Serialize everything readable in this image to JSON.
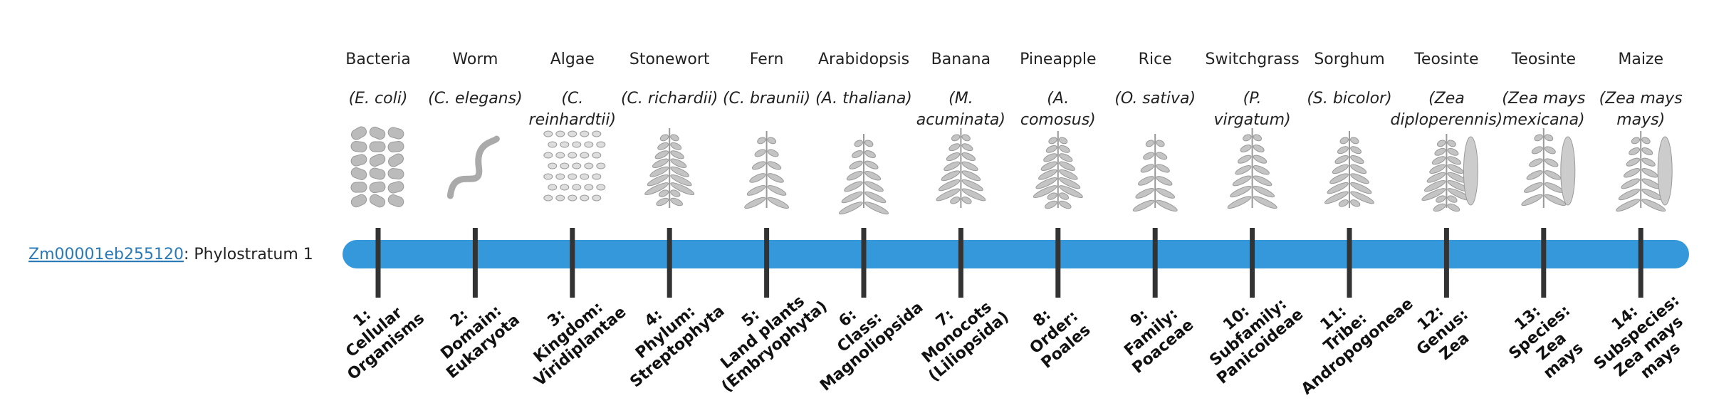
{
  "gene": {
    "id": "Zm00001eb255120",
    "suffix": ": Phylostratum 1"
  },
  "organisms": [
    {
      "name": "Bacteria",
      "species": [
        "(E. coli)"
      ],
      "stratum": [
        "1:",
        "Cellular",
        "Organisms"
      ]
    },
    {
      "name": "Worm",
      "species": [
        "(C. elegans)"
      ],
      "stratum": [
        "2:",
        "Domain:",
        "Eukaryota"
      ]
    },
    {
      "name": "Algae",
      "species": [
        "(C.",
        "reinhardtii)"
      ],
      "stratum": [
        "3:",
        "Kingdom:",
        "Viridiplantae"
      ]
    },
    {
      "name": "Stonewort",
      "species": [
        "(C. richardii)"
      ],
      "stratum": [
        "4:",
        "Phylum:",
        "Streptophyta"
      ]
    },
    {
      "name": "Fern",
      "species": [
        "(C. braunii)"
      ],
      "stratum": [
        "5:",
        "Land plants",
        "(Embryophyta)"
      ]
    },
    {
      "name": "Arabidopsis",
      "species": [
        "(A. thaliana)"
      ],
      "stratum": [
        "6:",
        "Class:",
        "Magnoliopsida"
      ]
    },
    {
      "name": "Banana",
      "species": [
        "(M.",
        "acuminata)"
      ],
      "stratum": [
        "7:",
        "Monocots",
        "(Liliopsida)"
      ]
    },
    {
      "name": "Pineapple",
      "species": [
        "(A.",
        "comosus)"
      ],
      "stratum": [
        "8:",
        "Order:",
        "Poales"
      ]
    },
    {
      "name": "Rice",
      "species": [
        "(O. sativa)"
      ],
      "stratum": [
        "9:",
        "Family:",
        "Poaceae"
      ]
    },
    {
      "name": "Switchgrass",
      "species": [
        "(P.",
        "virgatum)"
      ],
      "stratum": [
        "10:",
        "Subfamily:",
        "Panicoideae"
      ]
    },
    {
      "name": "Sorghum",
      "species": [
        "(S. bicolor)"
      ],
      "stratum": [
        "11:",
        "Tribe:",
        "Andropogoneae"
      ]
    },
    {
      "name": "Teosinte",
      "species": [
        "(Zea",
        "diploperennis)"
      ],
      "stratum": [
        "12:",
        "Genus:",
        "Zea"
      ]
    },
    {
      "name": "Teosinte",
      "species": [
        "(Zea mays",
        "mexicana)"
      ],
      "stratum": [
        "13:",
        "Species:",
        "Zea",
        "mays"
      ]
    },
    {
      "name": "Maize",
      "species": [
        "(Zea mays",
        "mays)"
      ],
      "stratum": [
        "14:",
        "Subspecies:",
        "Zea mays",
        "mays"
      ]
    }
  ]
}
